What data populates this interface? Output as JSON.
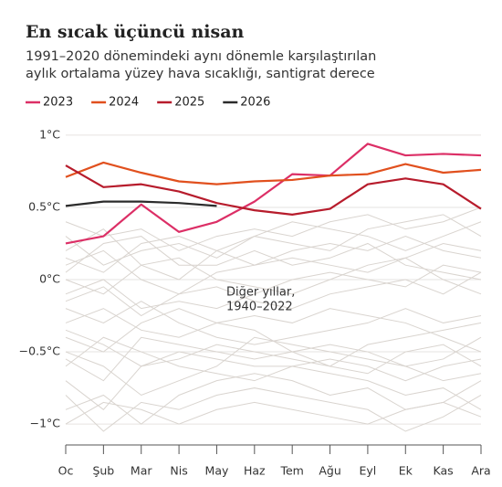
{
  "chart_data": {
    "type": "line",
    "title": "En sıcak üçüncü nisan",
    "subtitle": [
      "1991–2020 dönemindeki aynı dönemle karşılaştırılan",
      "aylık ortalama yüzey hava sıcaklığı, santigrat derece"
    ],
    "annotation": [
      "Diğer yıllar,",
      "1940–2022"
    ],
    "categories": [
      "Oc",
      "Şub",
      "Mar",
      "Nis",
      "May",
      "Haz",
      "Tem",
      "Ağu",
      "Eyl",
      "Ek",
      "Kas",
      "Ara"
    ],
    "ylim": [
      -1.05,
      1.05
    ],
    "yticks": [
      {
        "value": 1,
        "label": "1°C"
      },
      {
        "value": 0.5,
        "label": "0.5°C"
      },
      {
        "value": 0,
        "label": "0°C"
      },
      {
        "value": -0.5,
        "label": "−0.5°C"
      },
      {
        "value": -1,
        "label": "−1°C"
      }
    ],
    "grid": true,
    "legend": "top-left",
    "other_color": "#d9d4cf",
    "other_series": [
      [
        -0.3,
        -0.2,
        -0.35,
        -0.4,
        -0.3,
        -0.35,
        -0.5,
        -0.45,
        -0.5,
        -0.6,
        -0.55,
        -0.4
      ],
      [
        -0.7,
        -0.9,
        -0.6,
        -0.5,
        -0.55,
        -0.6,
        -0.6,
        -0.65,
        -0.7,
        -0.8,
        -0.75,
        -0.9
      ],
      [
        0.1,
        0.2,
        0.0,
        -0.1,
        0.05,
        0.1,
        0.2,
        0.25,
        0.2,
        0.3,
        0.2,
        0.15
      ],
      [
        -0.5,
        -0.6,
        -0.8,
        -0.7,
        -0.6,
        -0.4,
        -0.45,
        -0.5,
        -0.55,
        -0.6,
        -0.7,
        -0.65
      ],
      [
        0.3,
        0.1,
        0.2,
        0.25,
        0.15,
        0.3,
        0.4,
        0.35,
        0.3,
        0.2,
        0.3,
        0.4
      ],
      [
        -0.1,
        0.0,
        -0.2,
        -0.15,
        -0.2,
        -0.1,
        0.0,
        0.05,
        0.0,
        -0.05,
        0.1,
        0.05
      ],
      [
        -0.9,
        -0.8,
        -1.0,
        -0.8,
        -0.7,
        -0.65,
        -0.7,
        -0.8,
        -0.75,
        -0.9,
        -0.85,
        -0.7
      ],
      [
        0.2,
        0.35,
        0.1,
        0.0,
        0.2,
        0.3,
        0.25,
        0.2,
        0.35,
        0.4,
        0.45,
        0.3
      ],
      [
        -0.4,
        -0.5,
        -0.3,
        -0.2,
        -0.3,
        -0.25,
        -0.3,
        -0.2,
        -0.25,
        -0.3,
        -0.4,
        -0.5
      ],
      [
        -0.6,
        -0.4,
        -0.5,
        -0.6,
        -0.65,
        -0.7,
        -0.6,
        -0.55,
        -0.6,
        -0.7,
        -0.6,
        -0.55
      ],
      [
        0.0,
        -0.1,
        0.1,
        0.15,
        0.0,
        -0.05,
        -0.1,
        0.0,
        0.1,
        0.15,
        0.0,
        -0.1
      ],
      [
        -0.2,
        -0.3,
        -0.15,
        -0.3,
        -0.4,
        -0.45,
        -0.4,
        -0.35,
        -0.3,
        -0.2,
        -0.3,
        -0.25
      ],
      [
        -0.8,
        -1.05,
        -0.85,
        -0.9,
        -0.8,
        -0.75,
        -0.8,
        -0.85,
        -0.9,
        -1.05,
        -0.95,
        -0.8
      ],
      [
        0.4,
        0.3,
        0.35,
        0.2,
        0.3,
        0.35,
        0.3,
        0.4,
        0.45,
        0.35,
        0.4,
        0.5
      ],
      [
        -0.15,
        -0.05,
        -0.25,
        -0.1,
        -0.05,
        -0.15,
        -0.2,
        -0.1,
        -0.05,
        0.0,
        -0.1,
        0.05
      ],
      [
        -0.55,
        -0.7,
        -0.4,
        -0.45,
        -0.5,
        -0.55,
        -0.5,
        -0.6,
        -0.65,
        -0.5,
        -0.45,
        -0.6
      ],
      [
        0.15,
        0.05,
        0.25,
        0.3,
        0.2,
        0.1,
        0.15,
        0.1,
        0.05,
        0.15,
        0.25,
        0.2
      ],
      [
        -1.0,
        -0.85,
        -0.9,
        -1.0,
        -0.9,
        -0.85,
        -0.9,
        -0.95,
        -1.0,
        -0.9,
        -0.85,
        -0.95
      ],
      [
        -0.35,
        -0.45,
        -0.6,
        -0.55,
        -0.45,
        -0.5,
        -0.55,
        -0.6,
        -0.45,
        -0.4,
        -0.35,
        -0.3
      ],
      [
        0.05,
        0.25,
        0.3,
        0.1,
        0.1,
        0.2,
        0.1,
        0.15,
        0.25,
        0.1,
        0.05,
        0.0
      ]
    ],
    "series": [
      {
        "name": "2023",
        "color": "#dc2f66",
        "values": [
          0.25,
          0.3,
          0.52,
          0.33,
          0.4,
          0.54,
          0.73,
          0.72,
          0.94,
          0.86,
          0.87,
          0.86
        ]
      },
      {
        "name": "2024",
        "color": "#e1501e",
        "values": [
          0.71,
          0.81,
          0.74,
          0.68,
          0.66,
          0.68,
          0.69,
          0.72,
          0.73,
          0.8,
          0.74,
          0.76
        ]
      },
      {
        "name": "2025",
        "color": "#b71c2c",
        "values": [
          0.79,
          0.64,
          0.66,
          0.61,
          0.53,
          0.48,
          0.45,
          0.49,
          0.66,
          0.7,
          0.66,
          0.49
        ]
      },
      {
        "name": "2026",
        "color": "#2b2b2b",
        "values": [
          0.51,
          0.54,
          0.54,
          0.53,
          0.51,
          null,
          null,
          null,
          null,
          null,
          null,
          null
        ]
      }
    ]
  }
}
